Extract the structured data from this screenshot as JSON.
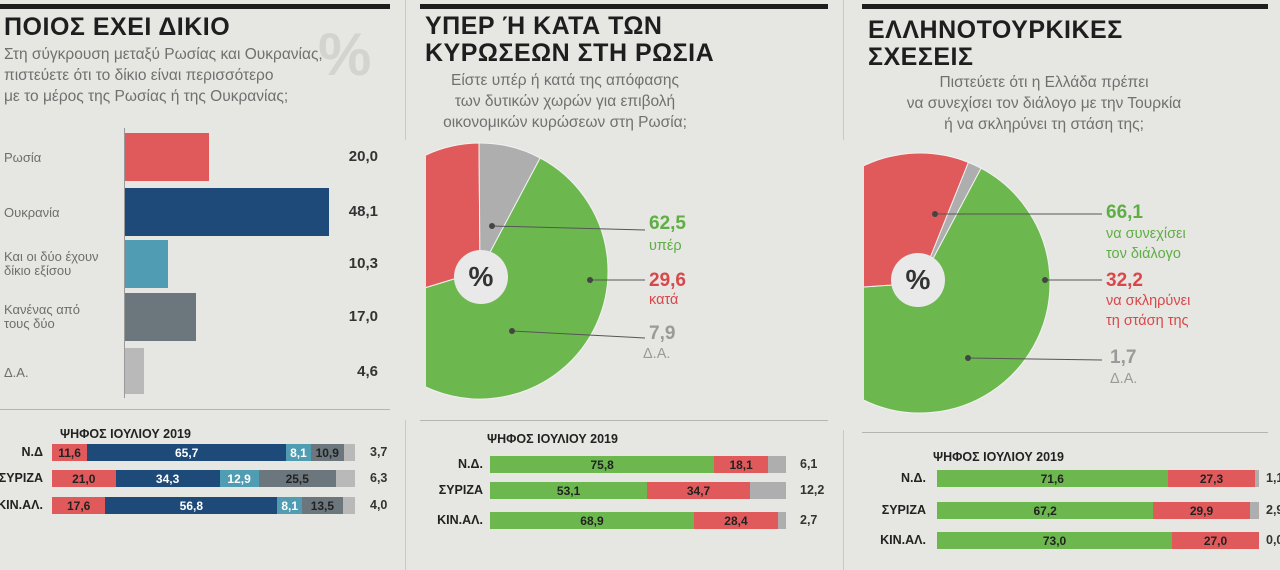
{
  "colors": {
    "russia": "#e05a5c",
    "ukraine": "#1d4a78",
    "both": "#4f9cb3",
    "none": "#6b777c",
    "na": "#b9b9b9",
    "green": "#6cb84f",
    "red": "#e05a5c",
    "grey": "#aeaeae",
    "green_text": "#5fae45",
    "red_text": "#d9474a",
    "grey_text": "#9a9a9a"
  },
  "panel1": {
    "title": "ΠΟΙΟΣ ΕΧΕΙ ΔΙΚΙΟ",
    "watermark": "%",
    "question": [
      "Στη σύγκρουση μεταξύ Ρωσίας και Ουκρανίας,",
      "πιστεύετε ότι το δίκιο είναι περισσότερο",
      "με το μέρος της Ρωσίας ή της Ουκρανίας;"
    ],
    "vote_header": "ΨΗΦΟΣ ΙΟΥΛΙΟΥ 2019",
    "party_rows": [
      {
        "party": "Ν.Δ",
        "segments": [
          "11,6",
          "65,7",
          "8,1",
          "10,9"
        ],
        "trail": "3,7"
      },
      {
        "party": "ΣΥΡΙΖΑ",
        "segments": [
          "21,0",
          "34,3",
          "12,9",
          "25,5"
        ],
        "trail": "6,3"
      },
      {
        "party": "ΚΙΝ.ΑΛ.",
        "segments": [
          "17,6",
          "56,8",
          "8,1",
          "13,5"
        ],
        "trail": "4,0"
      }
    ]
  },
  "panel2": {
    "title": [
      "ΥΠΕΡ Ή ΚΑΤΑ ΤΩΝ",
      "ΚΥΡΩΣΕΩΝ ΣΤΗ ΡΩΣΙΑ"
    ],
    "question": [
      "Είστε υπέρ ή κατά της απόφασης",
      "των δυτικών χωρών για επιβολή",
      "οικονομικών κυρώσεων στη Ρωσία;"
    ],
    "pct_symbol": "%",
    "labels": [
      {
        "num": "62,5",
        "text": [
          "υπέρ"
        ]
      },
      {
        "num": "29,6",
        "text": [
          "κατά"
        ]
      },
      {
        "num": "7,9",
        "text": [
          "Δ.Α."
        ]
      }
    ],
    "vote_header": "ΨΗΦΟΣ ΙΟΥΛΙΟΥ 2019",
    "party_rows": [
      {
        "party": "Ν.Δ.",
        "segments": [
          "75,8",
          "18,1"
        ],
        "trail": "6,1"
      },
      {
        "party": "ΣΥΡΙΖΑ",
        "segments": [
          "53,1",
          "34,7"
        ],
        "trail": "12,2"
      },
      {
        "party": "ΚΙΝ.ΑΛ.",
        "segments": [
          "68,9",
          "28,4"
        ],
        "trail": "2,7"
      }
    ]
  },
  "panel3": {
    "title": [
      "ΕΛΛΗΝΟΤΟΥΡΚΙΚΕΣ",
      "ΣΧΕΣΕΙΣ"
    ],
    "question": [
      "Πιστεύετε ότι η Ελλάδα πρέπει",
      "να συνεχίσει τον διάλογο με την Τουρκία",
      "ή να σκληρύνει τη στάση της;"
    ],
    "pct_symbol": "%",
    "labels": [
      {
        "num": "66,1",
        "text": [
          "να συνεχίσει",
          "τον διάλογο"
        ]
      },
      {
        "num": "32,2",
        "text": [
          "να σκληρύνει",
          "τη στάση της"
        ]
      },
      {
        "num": "1,7",
        "text": [
          "Δ.Α."
        ]
      }
    ],
    "vote_header": "ΨΗΦΟΣ ΙΟΥΛΙΟΥ 2019",
    "party_rows": [
      {
        "party": "Ν.Δ.",
        "segments": [
          "71,6",
          "27,3"
        ],
        "trail": "1,1"
      },
      {
        "party": "ΣΥΡΙΖΑ",
        "segments": [
          "67,2",
          "29,9"
        ],
        "trail": "2,9"
      },
      {
        "party": "ΚΙΝ.ΑΛ.",
        "segments": [
          "73,0",
          "27,0"
        ],
        "trail": "0,0"
      }
    ]
  },
  "chart_data": [
    {
      "type": "bar",
      "title": "ΠΟΙΟΣ ΕΧΕΙ ΔΙΚΙΟ",
      "categories": [
        "Ρωσία",
        "Ουκρανία",
        "Και οι δύο έχουν δίκιο εξίσου",
        "Κανένας από τους δύο",
        "Δ.Α."
      ],
      "values": [
        20.0,
        48.1,
        10.3,
        17.0,
        4.6
      ],
      "value_labels": [
        "20,0",
        "48,1",
        "10,3",
        "17,0",
        "4,6"
      ],
      "colors": [
        "#e05a5c",
        "#1d4a78",
        "#4f9cb3",
        "#6b777c",
        "#b9b9b9"
      ],
      "xlim": [
        0,
        50
      ]
    },
    {
      "type": "pie",
      "title": "ΥΠΕΡ Ή ΚΑΤΑ ΤΩΝ ΚΥΡΩΣΕΩΝ ΣΤΗ ΡΩΣΙΑ",
      "categories": [
        "υπέρ",
        "κατά",
        "Δ.Α."
      ],
      "values": [
        62.5,
        29.6,
        7.9
      ],
      "colors": [
        "#6cb84f",
        "#e05a5c",
        "#aeaeae"
      ]
    },
    {
      "type": "pie",
      "title": "ΕΛΛΗΝΟΤΟΥΡΚΙΚΕΣ ΣΧΕΣΕΙΣ",
      "categories": [
        "να συνεχίσει τον διάλογο",
        "να σκληρύνει τη στάση της",
        "Δ.Α."
      ],
      "values": [
        66.1,
        32.2,
        1.7
      ],
      "colors": [
        "#6cb84f",
        "#e05a5c",
        "#aeaeae"
      ]
    }
  ]
}
